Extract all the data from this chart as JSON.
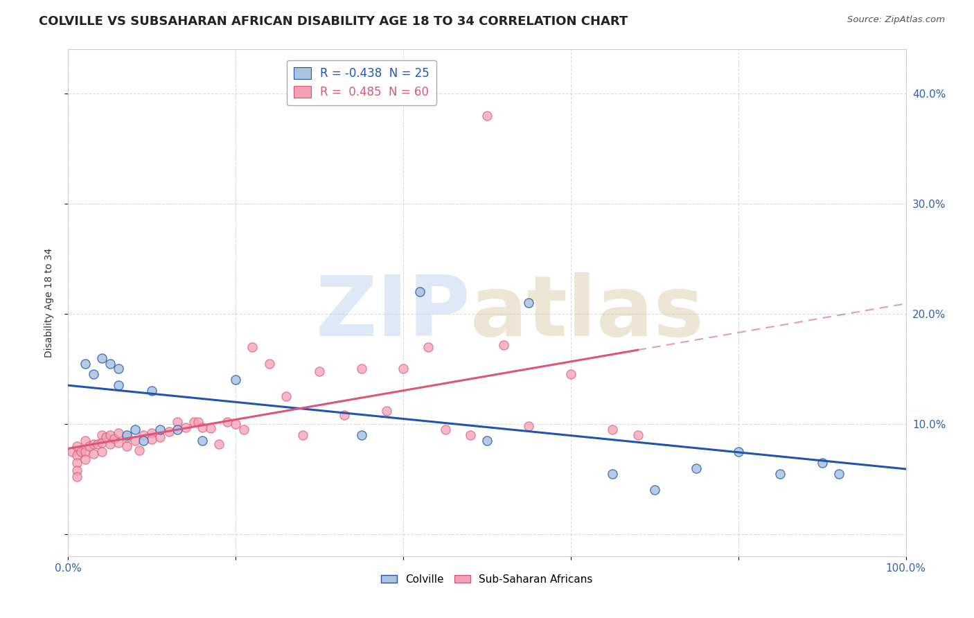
{
  "title": "COLVILLE VS SUBSAHARAN AFRICAN DISABILITY AGE 18 TO 34 CORRELATION CHART",
  "source": "Source: ZipAtlas.com",
  "ylabel": "Disability Age 18 to 34",
  "xlim": [
    0.0,
    1.0
  ],
  "ylim": [
    -0.02,
    0.44
  ],
  "x_ticks": [
    0.0,
    0.2,
    0.4,
    0.6,
    0.8,
    1.0
  ],
  "x_tick_labels": [
    "0.0%",
    "",
    "",
    "",
    "",
    "100.0%"
  ],
  "y_ticks": [
    0.0,
    0.1,
    0.2,
    0.3,
    0.4
  ],
  "y_tick_labels": [
    "",
    "10.0%",
    "20.0%",
    "30.0%",
    "40.0%"
  ],
  "colville_R": -0.438,
  "colville_N": 25,
  "subsaharan_R": 0.485,
  "subsaharan_N": 60,
  "colville_color": "#a8c4e0",
  "subsaharan_color": "#f4a0b4",
  "colville_line_color": "#2255aa",
  "subsaharan_line_color": "#dd5577",
  "grid_color": "#cccccc",
  "background_color": "#ffffff",
  "colville_x": [
    0.02,
    0.03,
    0.04,
    0.05,
    0.06,
    0.06,
    0.07,
    0.08,
    0.09,
    0.1,
    0.11,
    0.13,
    0.16,
    0.2,
    0.35,
    0.42,
    0.5,
    0.55,
    0.65,
    0.7,
    0.75,
    0.8,
    0.85,
    0.9,
    0.92
  ],
  "colville_y": [
    0.155,
    0.145,
    0.16,
    0.155,
    0.135,
    0.15,
    0.09,
    0.095,
    0.085,
    0.13,
    0.095,
    0.095,
    0.085,
    0.14,
    0.09,
    0.22,
    0.085,
    0.21,
    0.055,
    0.04,
    0.06,
    0.075,
    0.055,
    0.065,
    0.055
  ],
  "subsaharan_x": [
    0.005,
    0.01,
    0.01,
    0.01,
    0.01,
    0.01,
    0.015,
    0.02,
    0.02,
    0.02,
    0.025,
    0.03,
    0.03,
    0.035,
    0.04,
    0.04,
    0.04,
    0.045,
    0.05,
    0.05,
    0.055,
    0.06,
    0.06,
    0.07,
    0.07,
    0.08,
    0.085,
    0.09,
    0.1,
    0.1,
    0.11,
    0.12,
    0.13,
    0.14,
    0.15,
    0.155,
    0.16,
    0.17,
    0.18,
    0.19,
    0.2,
    0.21,
    0.22,
    0.24,
    0.26,
    0.28,
    0.3,
    0.33,
    0.35,
    0.38,
    0.4,
    0.43,
    0.45,
    0.48,
    0.5,
    0.52,
    0.55,
    0.6,
    0.65,
    0.68
  ],
  "subsaharan_y": [
    0.075,
    0.08,
    0.072,
    0.065,
    0.058,
    0.052,
    0.075,
    0.085,
    0.075,
    0.068,
    0.08,
    0.082,
    0.073,
    0.082,
    0.09,
    0.083,
    0.075,
    0.088,
    0.09,
    0.082,
    0.087,
    0.092,
    0.083,
    0.088,
    0.08,
    0.085,
    0.076,
    0.09,
    0.092,
    0.086,
    0.088,
    0.093,
    0.102,
    0.097,
    0.102,
    0.102,
    0.097,
    0.096,
    0.082,
    0.102,
    0.1,
    0.095,
    0.17,
    0.155,
    0.125,
    0.09,
    0.148,
    0.108,
    0.15,
    0.112,
    0.15,
    0.17,
    0.095,
    0.09,
    0.38,
    0.172,
    0.098,
    0.145,
    0.095,
    0.09
  ],
  "title_fontsize": 13,
  "axis_label_fontsize": 10,
  "tick_fontsize": 11,
  "legend_fontsize": 12
}
